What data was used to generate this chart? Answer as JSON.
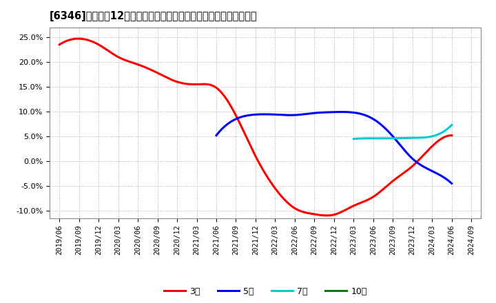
{
  "title": "[6346]　売上高12か月移動合計の対前年同期増減率の平均値の推移",
  "ylim": [
    -0.115,
    0.27
  ],
  "yticks": [
    -0.1,
    -0.05,
    0.0,
    0.05,
    0.1,
    0.15,
    0.2,
    0.25
  ],
  "ytick_labels": [
    "-10.0%",
    "-5.0%",
    "0.0%",
    "5.0%",
    "10.0%",
    "15.0%",
    "20.0%",
    "25.0%"
  ],
  "background_color": "#ffffff",
  "plot_bg_color": "#ffffff",
  "grid_color": "#aaaaaa",
  "series": {
    "3年": {
      "color": "#ff0000",
      "x": [
        "2019/06",
        "2019/09",
        "2019/12",
        "2020/03",
        "2020/06",
        "2020/09",
        "2020/12",
        "2021/03",
        "2021/06",
        "2021/09",
        "2021/12",
        "2022/03",
        "2022/06",
        "2022/09",
        "2022/12",
        "2023/03",
        "2023/06",
        "2023/09",
        "2023/12",
        "2024/03",
        "2024/06"
      ],
      "y": [
        0.235,
        0.247,
        0.235,
        0.21,
        0.195,
        0.178,
        0.16,
        0.155,
        0.148,
        0.092,
        0.01,
        -0.055,
        -0.095,
        -0.107,
        -0.108,
        -0.09,
        -0.072,
        -0.04,
        -0.01,
        0.03,
        0.052
      ]
    },
    "5年": {
      "color": "#0000ff",
      "x": [
        "2021/06",
        "2021/09",
        "2021/12",
        "2022/03",
        "2022/06",
        "2022/09",
        "2022/12",
        "2023/03",
        "2023/06",
        "2023/09",
        "2023/12",
        "2024/03",
        "2024/06"
      ],
      "y": [
        0.052,
        0.085,
        0.094,
        0.094,
        0.093,
        0.097,
        0.099,
        0.098,
        0.085,
        0.05,
        0.005,
        -0.02,
        -0.045
      ]
    },
    "7年": {
      "color": "#00cccc",
      "x": [
        "2023/03",
        "2023/06",
        "2023/09",
        "2023/12",
        "2024/03",
        "2024/06"
      ],
      "y": [
        0.045,
        0.046,
        0.046,
        0.047,
        0.05,
        0.073
      ]
    },
    "10年": {
      "color": "#008000",
      "x": [],
      "y": []
    }
  },
  "legend_labels": [
    "3年",
    "5年",
    "7年",
    "10年"
  ],
  "legend_colors": [
    "#ff0000",
    "#0000ff",
    "#00cccc",
    "#008000"
  ],
  "xtick_labels": [
    "2019/06",
    "2019/09",
    "2019/12",
    "2020/03",
    "2020/06",
    "2020/09",
    "2020/12",
    "2021/03",
    "2021/06",
    "2021/09",
    "2021/12",
    "2022/03",
    "2022/06",
    "2022/09",
    "2022/12",
    "2023/03",
    "2023/06",
    "2023/09",
    "2023/12",
    "2024/03",
    "2024/06",
    "2024/09"
  ]
}
